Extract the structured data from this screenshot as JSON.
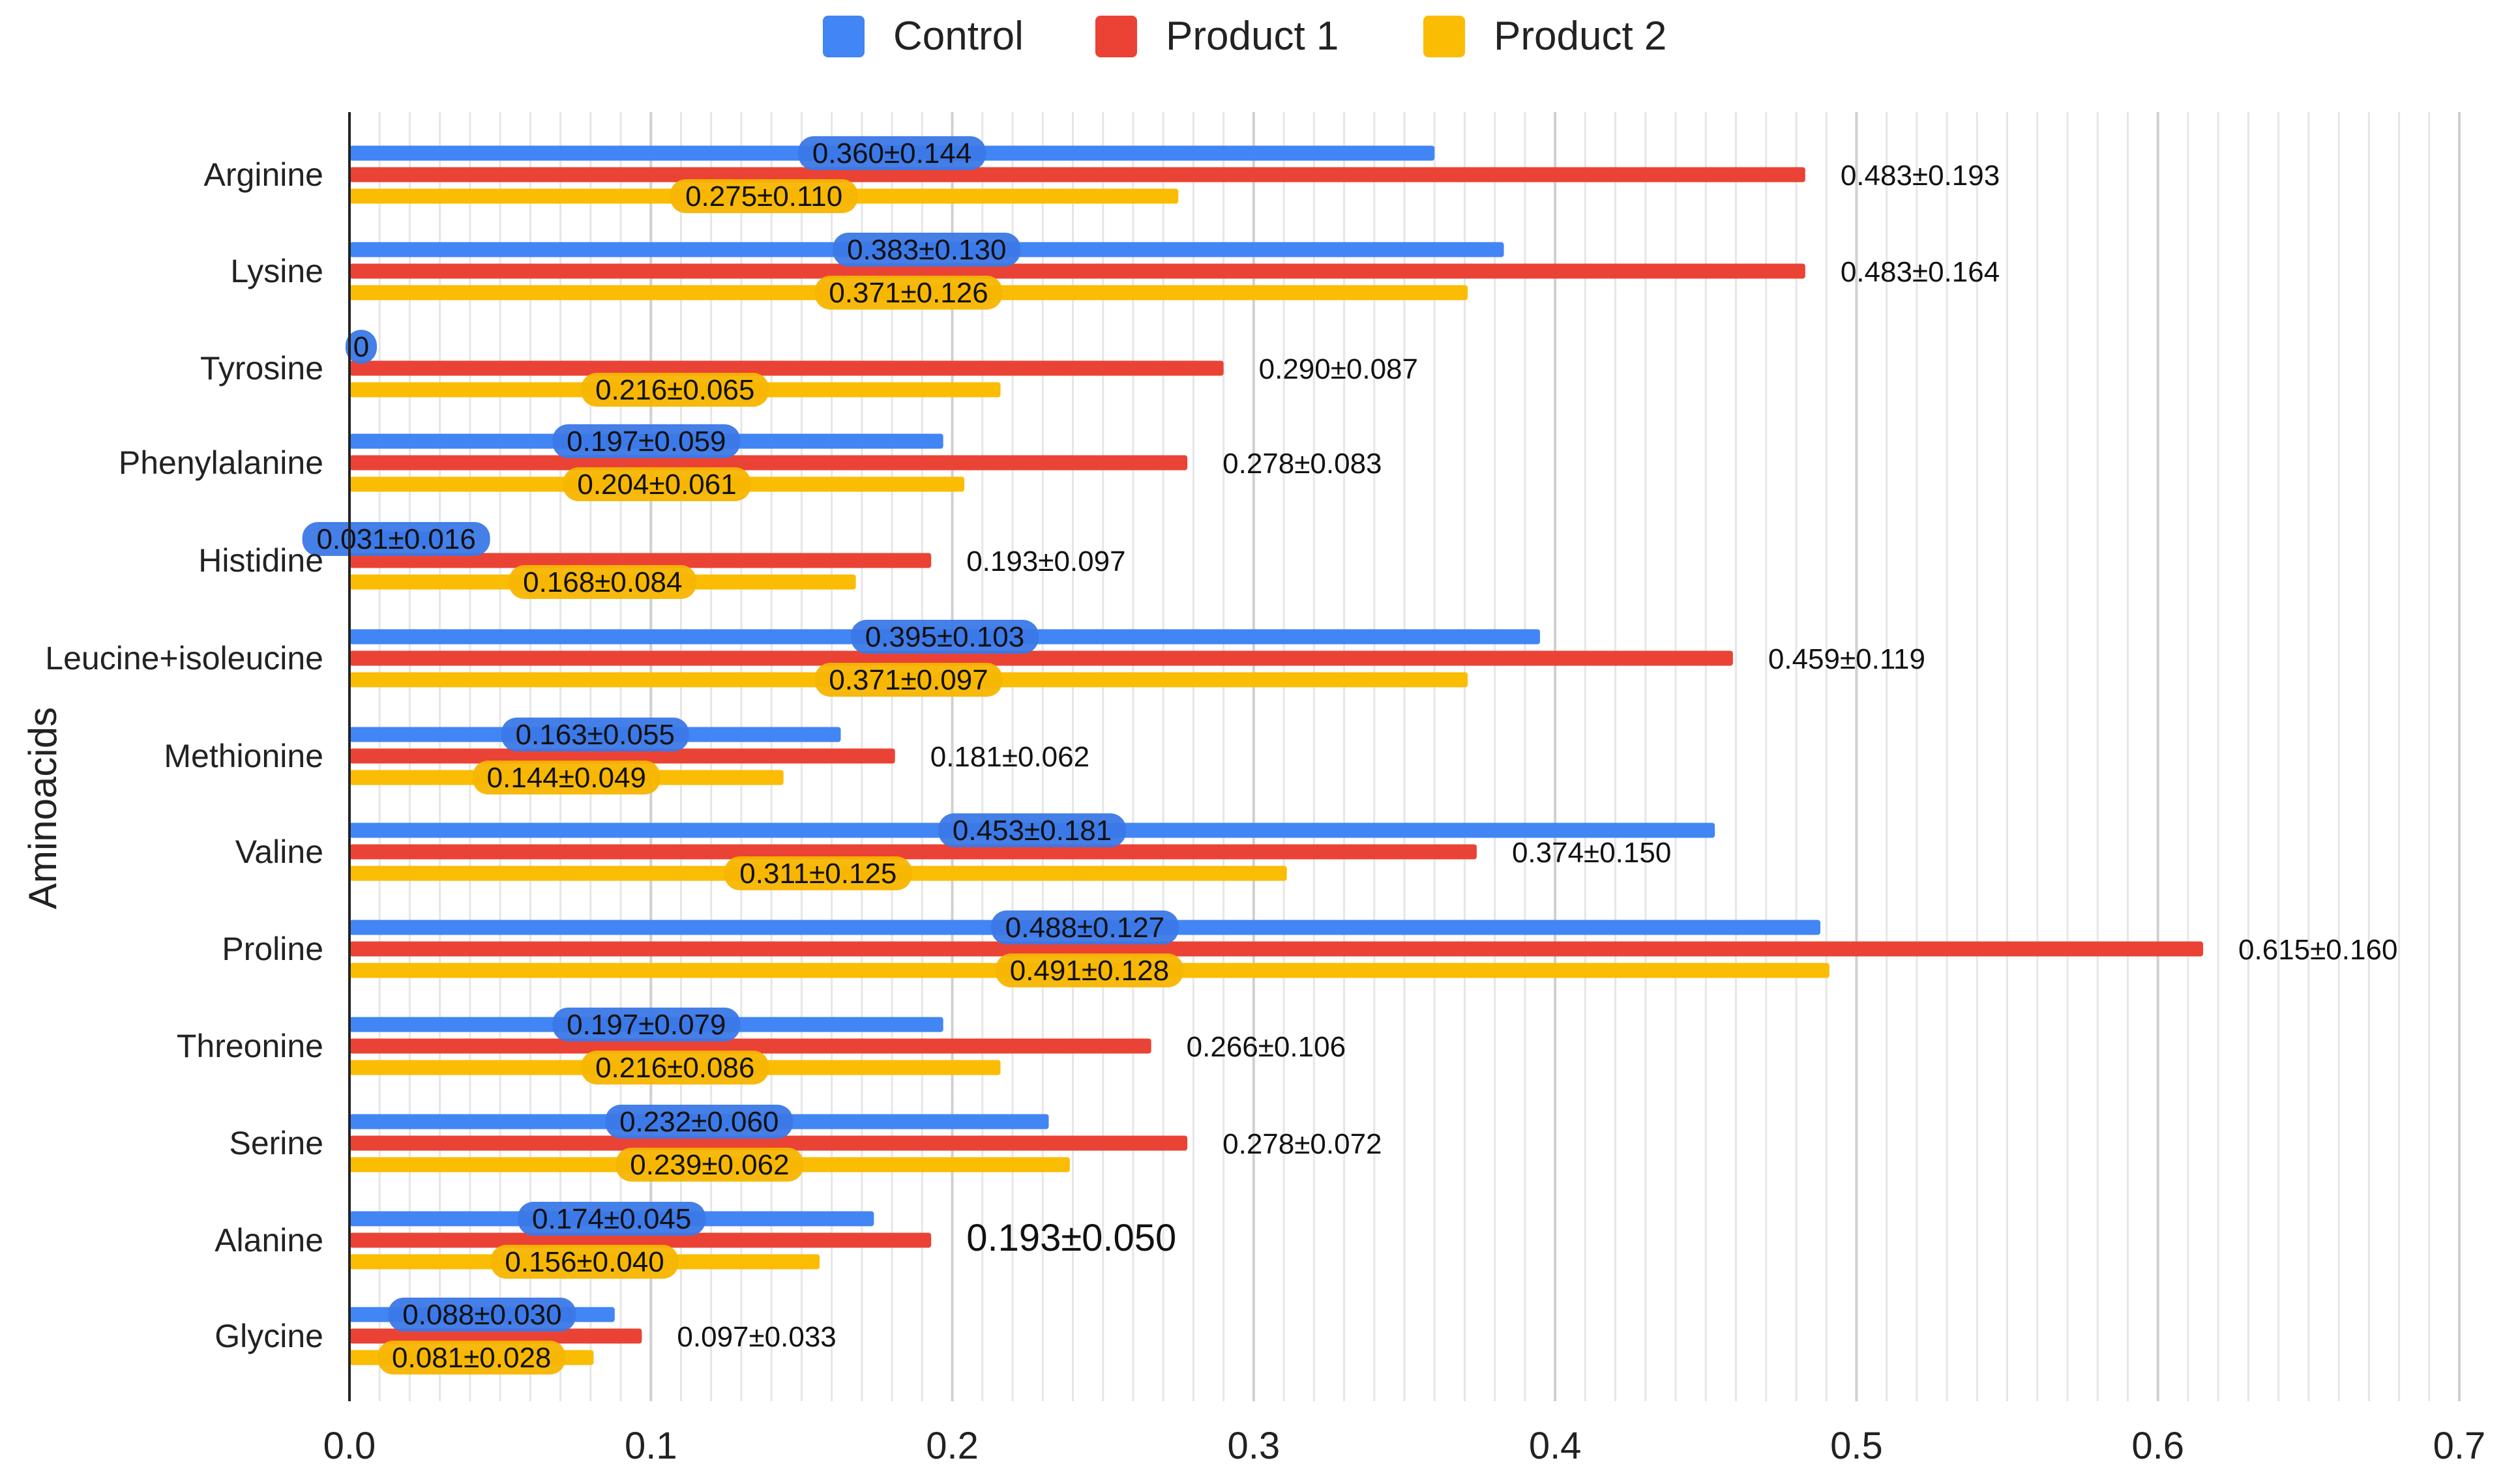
{
  "chart_data": {
    "type": "bar",
    "orientation": "horizontal",
    "title": "",
    "xlabel": "",
    "ylabel": "Aminoacids",
    "xlim": [
      0,
      0.7
    ],
    "xticks": [
      "0.0",
      "0.1",
      "0.2",
      "0.3",
      "0.4",
      "0.5",
      "0.6",
      "0.7"
    ],
    "grid": true,
    "legend_position": "top-center",
    "categories": [
      "Arginine",
      "Lysine",
      "Tyrosine",
      "Phenylalanine",
      "Histidine",
      "Leucine+isoleucine",
      "Methionine",
      "Valine",
      "Proline",
      "Threonine",
      "Serine",
      "Alanine",
      "Glycine"
    ],
    "series": [
      {
        "name": "Control",
        "color": "#4285f4",
        "values": [
          0.36,
          0.383,
          0,
          0.197,
          0.031,
          0.395,
          0.163,
          0.453,
          0.488,
          0.197,
          0.232,
          0.174,
          0.088
        ],
        "labels": [
          "0.360±0.144",
          "0.383±0.130",
          "0",
          "0.197±0.059",
          "0.031±0.016",
          "0.395±0.103",
          "0.163±0.055",
          "0.453±0.181",
          "0.488±0.127",
          "0.197±0.079",
          "0.232±0.060",
          "0.174±0.045",
          "0.088±0.030"
        ]
      },
      {
        "name": "Product 1",
        "color": "#ea4335",
        "values": [
          0.483,
          0.483,
          0.29,
          0.278,
          0.193,
          0.459,
          0.181,
          0.374,
          0.615,
          0.266,
          0.278,
          0.193,
          0.097
        ],
        "labels": [
          "0.483±0.193",
          "0.483±0.164",
          "0.290±0.087",
          "0.278±0.083",
          "0.193±0.097",
          "0.459±0.119",
          "0.181±0.062",
          "0.374±0.150",
          "0.615±0.160",
          "0.266±0.106",
          "0.278±0.072",
          "0.193±0.050",
          "0.097±0.033"
        ]
      },
      {
        "name": "Product 2",
        "color": "#fbbc04",
        "values": [
          0.275,
          0.371,
          0.216,
          0.204,
          0.168,
          0.371,
          0.144,
          0.311,
          0.491,
          0.216,
          0.239,
          0.156,
          0.081
        ],
        "labels": [
          "0.275±0.110",
          "0.371±0.126",
          "0.216±0.065",
          "0.204±0.061",
          "0.168±0.084",
          "0.371±0.097",
          "0.144±0.049",
          "0.311±0.125",
          "0.491±0.128",
          "0.216±0.086",
          "0.239±0.062",
          "0.156±0.040",
          "0.081±0.028"
        ]
      }
    ]
  }
}
